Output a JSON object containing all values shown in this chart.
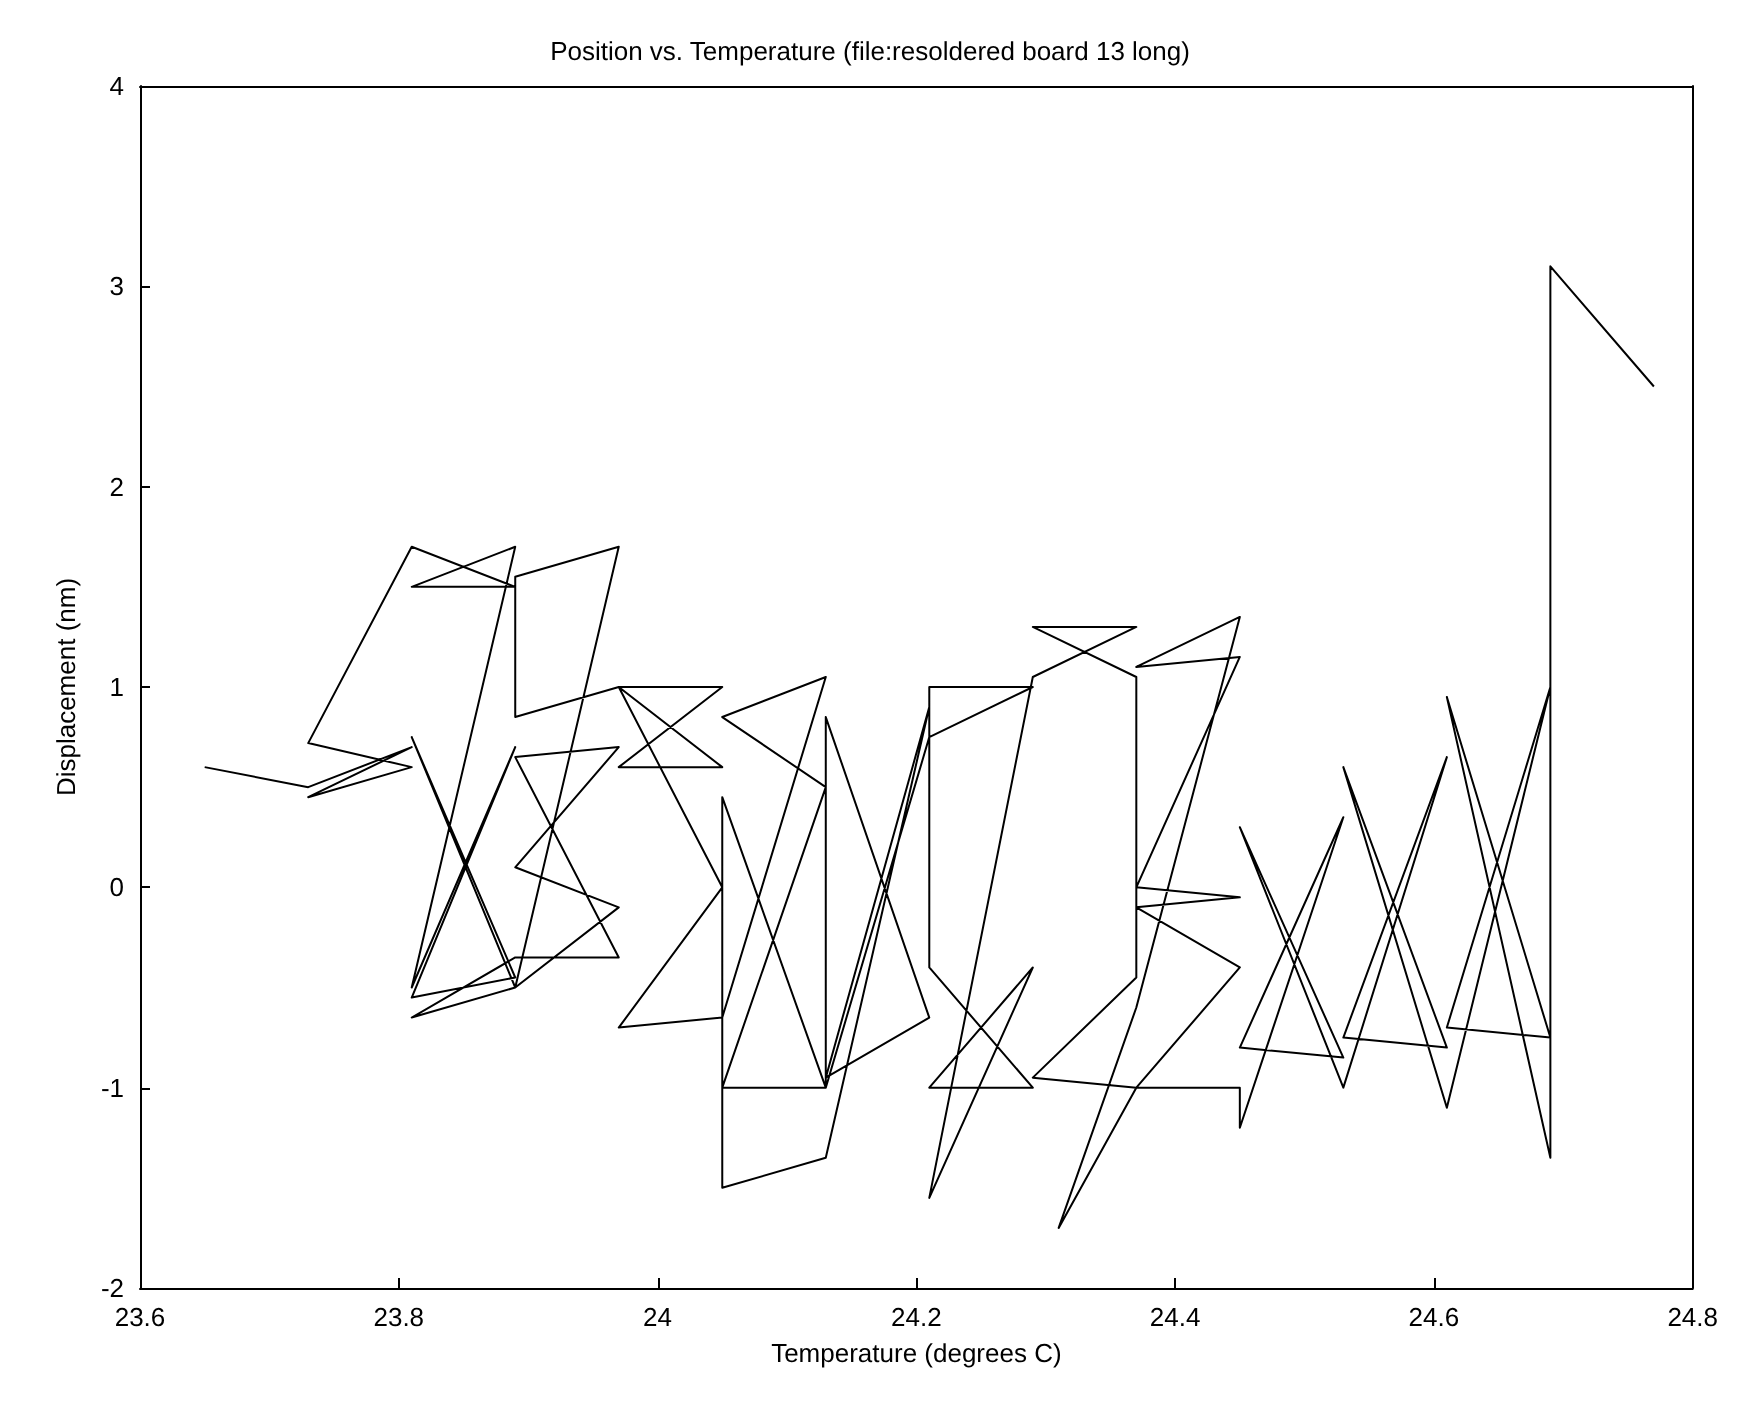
{
  "chart_data": {
    "type": "line",
    "title": "Position vs. Temperature (file:resoldered board 13 long)",
    "xlabel": "Temperature (degrees C)",
    "ylabel": "Displacement (nm)",
    "xlim": [
      23.6,
      24.8
    ],
    "xticks": [
      23.6,
      23.8,
      24,
      24.2,
      24.4,
      24.6,
      24.8
    ],
    "ylim": [
      -2,
      4
    ],
    "yticks": [
      -2,
      -1,
      0,
      1,
      2,
      3,
      4
    ],
    "grid": false,
    "marker": "none",
    "line_style": "solid",
    "series": [
      {
        "color": "#000000",
        "x": [
          23.65,
          23.73,
          23.81,
          23.73,
          23.81,
          23.73,
          23.81,
          23.89,
          23.81,
          23.89,
          23.81,
          23.89,
          23.81,
          23.89,
          23.81,
          23.89,
          23.81,
          23.89,
          23.97,
          23.89,
          23.97,
          23.89,
          23.97,
          23.89,
          23.97,
          23.89,
          23.89,
          23.97,
          24.05,
          23.97,
          24.05,
          23.97,
          24.05,
          23.97,
          24.05,
          24.13,
          24.05,
          24.13,
          24.05,
          24.13,
          24.05,
          24.05,
          24.13,
          24.21,
          24.13,
          24.21,
          24.13,
          24.13,
          24.21,
          24.29,
          24.21,
          24.21,
          24.29,
          24.21,
          24.29,
          24.21,
          24.29,
          24.37,
          24.29,
          24.37,
          24.37,
          24.29,
          24.37,
          24.31,
          24.37,
          24.45,
          24.37,
          24.45,
          24.37,
          24.45,
          24.37,
          24.45,
          24.37,
          24.45,
          24.45,
          24.53,
          24.45,
          24.53,
          24.45,
          24.53,
          24.61,
          24.53,
          24.61,
          24.53,
          24.61,
          24.69,
          24.61,
          24.69,
          24.61,
          24.69,
          24.69,
          24.77
        ],
        "values": [
          0.6,
          0.5,
          0.7,
          0.45,
          0.6,
          0.72,
          1.7,
          1.5,
          1.5,
          1.7,
          -0.5,
          0.7,
          -0.55,
          -0.45,
          0.75,
          -0.5,
          -0.65,
          -0.35,
          -0.35,
          0.65,
          0.7,
          0.1,
          -0.1,
          -0.5,
          1.7,
          1.55,
          0.85,
          1.0,
          1.0,
          0.6,
          0.6,
          1.0,
          0.0,
          -0.7,
          -0.65,
          1.05,
          0.85,
          0.5,
          -1.0,
          -1.0,
          0.45,
          -1.5,
          -1.35,
          0.9,
          -0.95,
          -0.65,
          0.85,
          -1.0,
          0.75,
          1.0,
          1.0,
          -0.4,
          -1.0,
          -1.0,
          -0.4,
          -1.55,
          1.05,
          1.3,
          1.3,
          1.05,
          -0.45,
          -0.95,
          -1.0,
          -1.7,
          -0.6,
          1.35,
          1.1,
          1.15,
          0.0,
          -0.05,
          -0.1,
          -0.4,
          -1.0,
          -1.0,
          -1.2,
          0.35,
          -0.8,
          -0.85,
          0.3,
          -1.0,
          0.65,
          -0.75,
          -0.8,
          0.6,
          -1.1,
          1.0,
          -0.7,
          -0.75,
          0.95,
          -1.35,
          3.1,
          2.5
        ]
      }
    ]
  }
}
